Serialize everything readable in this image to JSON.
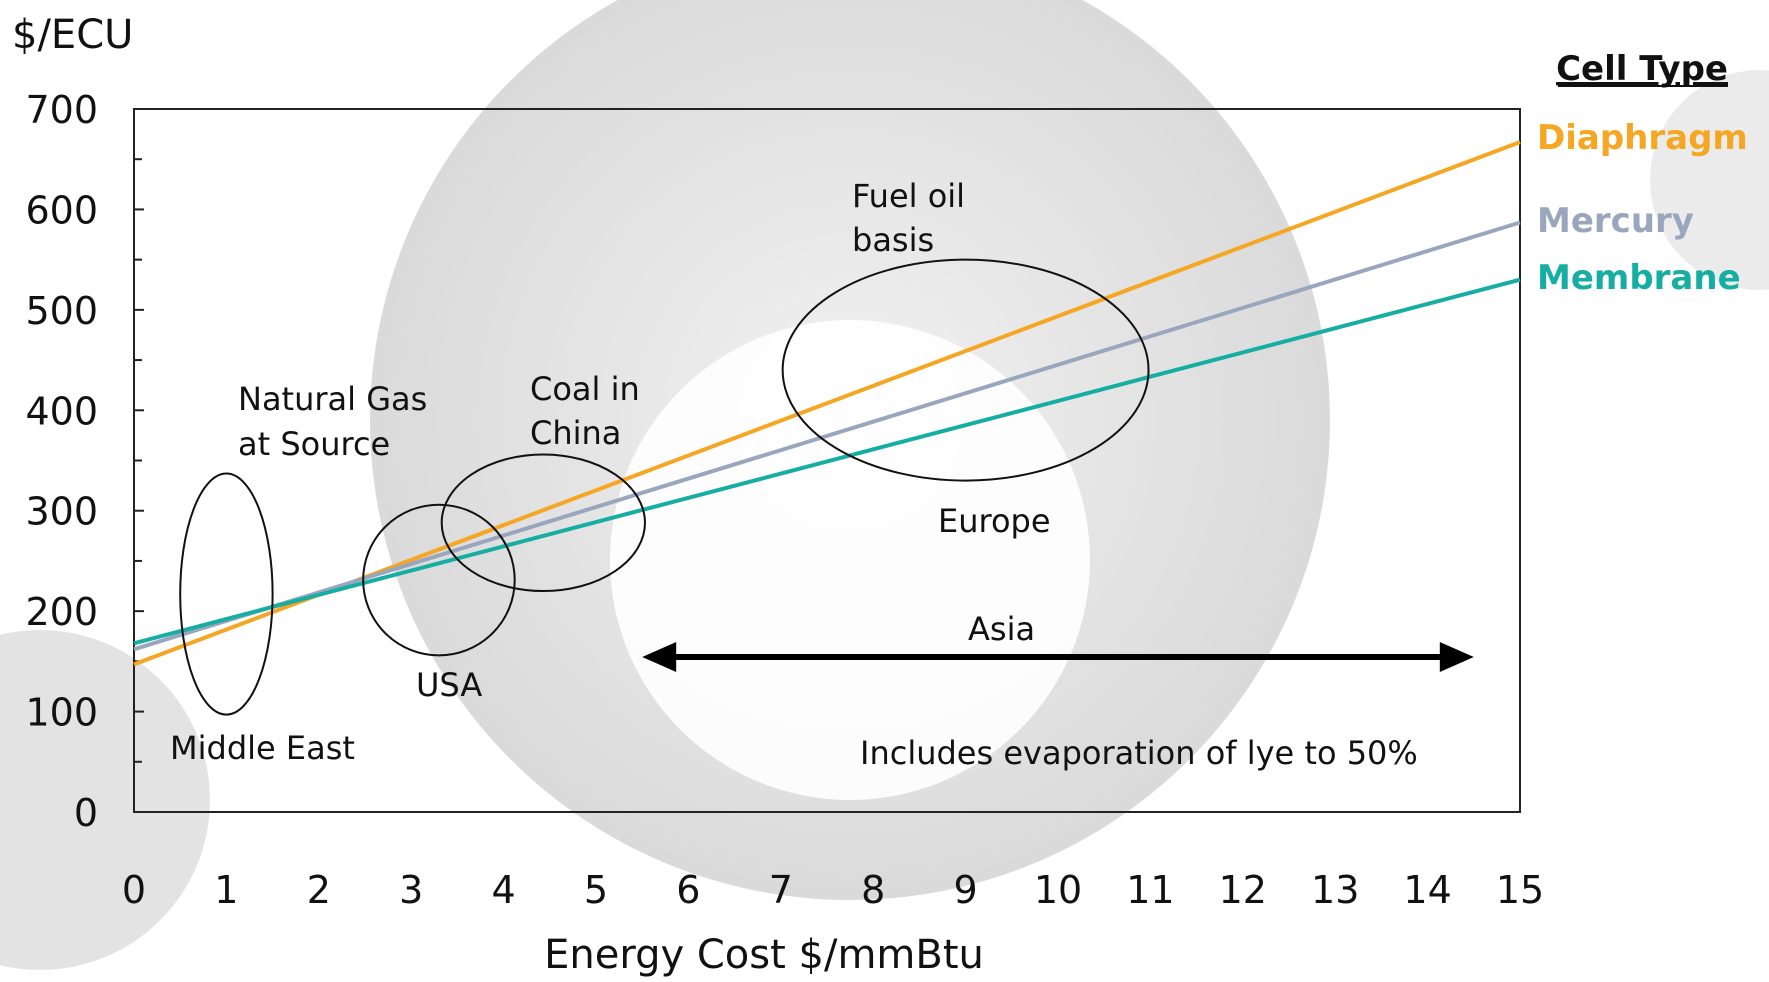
{
  "chart_data": {
    "type": "line",
    "ylabel": "$/ECU",
    "xlabel": "Energy Cost $/mmBtu",
    "xlim": [
      0,
      15
    ],
    "ylim": [
      0,
      700
    ],
    "x_ticks": [
      "0",
      "1",
      "2",
      "3",
      "4",
      "5",
      "6",
      "7",
      "8",
      "9",
      "10",
      "11",
      "12",
      "13",
      "14",
      "15"
    ],
    "y_ticks": [
      "0",
      "100",
      "200",
      "300",
      "400",
      "500",
      "600",
      "700"
    ],
    "grid": false,
    "legend": {
      "title": "Cell Type",
      "placement": "right"
    },
    "series": [
      {
        "name": "Diaphragm",
        "color": "#F5A623",
        "x": [
          0,
          15
        ],
        "y": [
          147,
          667
        ]
      },
      {
        "name": "Mercury",
        "color": "#9AA6BE",
        "x": [
          0,
          15
        ],
        "y": [
          162,
          587
        ]
      },
      {
        "name": "Membrane",
        "color": "#16ADA3",
        "x": [
          0,
          15
        ],
        "y": [
          168,
          530
        ]
      }
    ],
    "regions": [
      {
        "label_lines": [
          "Middle East"
        ],
        "cx": 1.0,
        "cy": 217,
        "rx": 0.5,
        "ry": 120
      },
      {
        "label_lines": [
          "USA"
        ],
        "cx": 3.3,
        "cy": 231,
        "rx": 0.82,
        "ry": 75
      },
      {
        "label_lines": [
          "Coal in",
          "China"
        ],
        "cx": 4.43,
        "cy": 288,
        "rx": 1.1,
        "ry": 68
      },
      {
        "label_lines": [
          "Fuel oil",
          "basis"
        ],
        "cx": 9.0,
        "cy": 440,
        "rx": 1.98,
        "ry": 110
      }
    ],
    "annotations": {
      "natural_gas": [
        "Natural Gas",
        "at Source"
      ],
      "europe": "Europe",
      "asia": "Asia",
      "asia_range": [
        5.5,
        14.5
      ],
      "note": "Includes evaporation of lye to 50%"
    }
  }
}
